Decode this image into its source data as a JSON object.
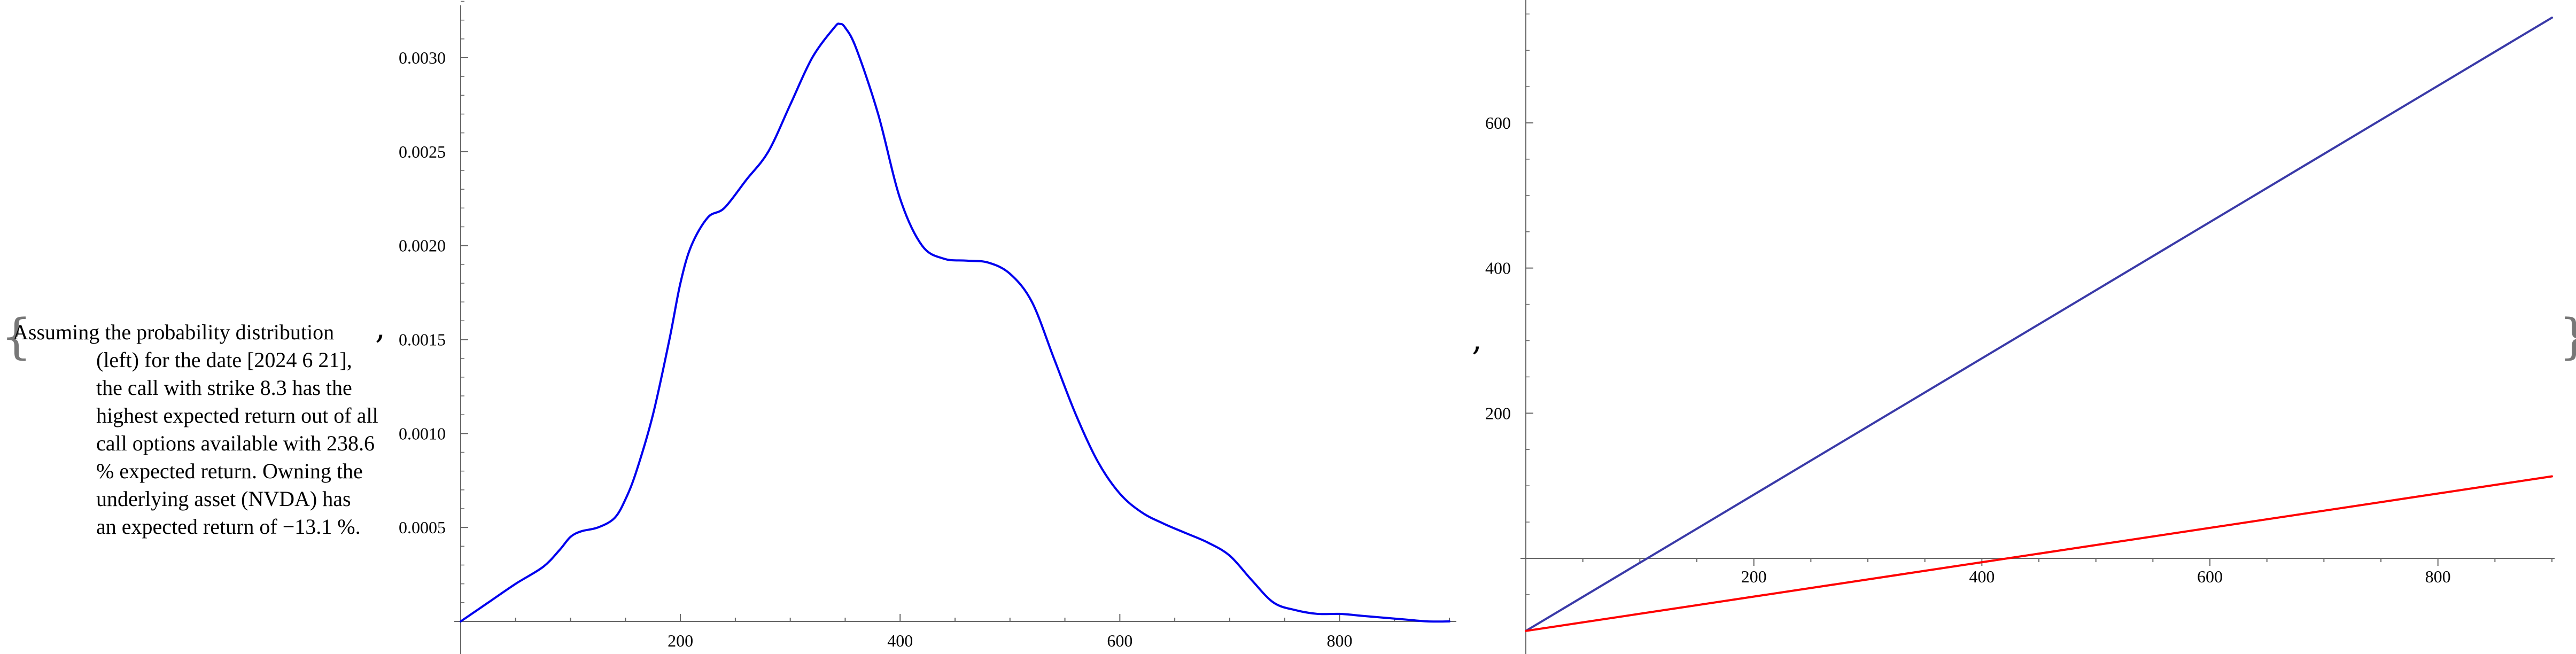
{
  "caption": {
    "lines": [
      "Assuming the probability distribution",
      "(left) for the date [2024 6 21],",
      "the call with strike 8.3 has the",
      "highest expected return out of all",
      "call options available with 238.6",
      "% expected return. Owning the",
      "underlying asset (NVDA) has",
      "an expected return of −13.1 %."
    ]
  },
  "list_syntax": {
    "open_brace": "{",
    "close_brace": "}",
    "separator": ","
  },
  "chart_data": [
    {
      "type": "line",
      "title": "",
      "xlabel": "",
      "ylabel": "",
      "xlim": [
        0,
        900
      ],
      "ylim": [
        0,
        0.0033
      ],
      "grid": false,
      "x_ticks": [
        200,
        400,
        600,
        800
      ],
      "x_tick_labels": [
        "200",
        "400",
        "600",
        "800"
      ],
      "y_ticks": [
        0.0005,
        0.001,
        0.0015,
        0.002,
        0.0025,
        0.003
      ],
      "y_tick_labels": [
        "0.0005",
        "0.0010",
        "0.0015",
        "0.0020",
        "0.0025",
        "0.0030"
      ],
      "series": [
        {
          "color": "#0000ee",
          "x": [
            0,
            25,
            50,
            75,
            90,
            100,
            110,
            125,
            140,
            150,
            160,
            175,
            190,
            200,
            210,
            225,
            240,
            260,
            280,
            300,
            320,
            340,
            345,
            350,
            360,
            380,
            400,
            420,
            440,
            460,
            480,
            500,
            520,
            540,
            560,
            580,
            600,
            620,
            640,
            660,
            680,
            700,
            720,
            740,
            760,
            780,
            800,
            820,
            840,
            860,
            880,
            900
          ],
          "values": [
            0.0,
            0.0001,
            0.0002,
            0.00029,
            0.00038,
            0.00045,
            0.00048,
            0.0005,
            0.00055,
            0.00065,
            0.0008,
            0.0011,
            0.0015,
            0.0018,
            0.002,
            0.00215,
            0.0022,
            0.00235,
            0.0025,
            0.00275,
            0.003,
            0.00316,
            0.00318,
            0.00316,
            0.00305,
            0.0027,
            0.00225,
            0.002,
            0.00193,
            0.00192,
            0.00191,
            0.00185,
            0.0017,
            0.0014,
            0.0011,
            0.00085,
            0.00068,
            0.00058,
            0.00052,
            0.00047,
            0.00042,
            0.00035,
            0.00022,
            0.0001,
            6e-05,
            4e-05,
            4e-05,
            3e-05,
            2e-05,
            1e-05,
            0.0,
            0.0
          ]
        }
      ]
    },
    {
      "type": "line",
      "title": "",
      "xlabel": "",
      "ylabel": "",
      "xlim": [
        0,
        900
      ],
      "ylim": [
        -135,
        770
      ],
      "grid": false,
      "x_ticks": [
        200,
        400,
        600,
        800
      ],
      "x_tick_labels": [
        "200",
        "400",
        "600",
        "800"
      ],
      "y_ticks": [
        200,
        400,
        600
      ],
      "y_tick_labels": [
        "200",
        "400",
        "600"
      ],
      "series": [
        {
          "color": "#3a3aa8",
          "x": [
            0,
            900
          ],
          "values": [
            -100,
            745
          ]
        },
        {
          "color": "#ff0000",
          "x": [
            0,
            900
          ],
          "values": [
            -100,
            113
          ]
        }
      ]
    }
  ]
}
